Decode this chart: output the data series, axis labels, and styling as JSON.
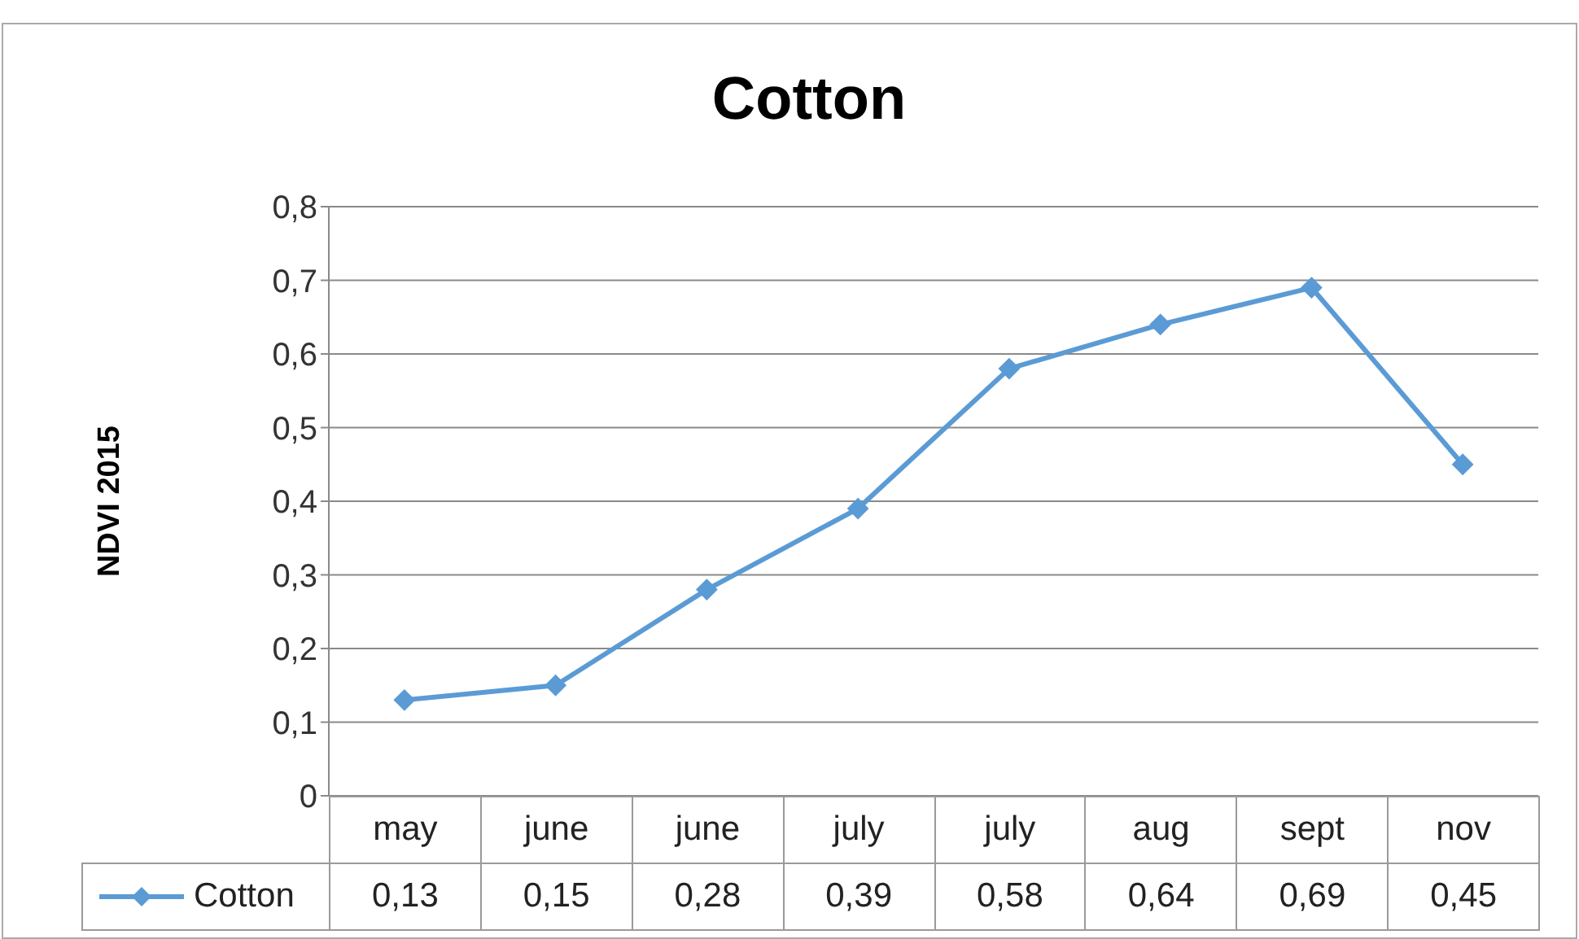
{
  "chart_data": {
    "type": "line",
    "title": "Cotton",
    "ylabel": "NDVI 2015",
    "categories": [
      "may",
      "june",
      "june",
      "july",
      "july",
      "aug",
      "sept",
      "nov"
    ],
    "series": [
      {
        "name": "Cotton",
        "color": "#5b9bd5",
        "values": [
          0.13,
          0.15,
          0.28,
          0.39,
          0.58,
          0.64,
          0.69,
          0.45
        ],
        "value_labels": [
          "0,13",
          "0,15",
          "0,28",
          "0,39",
          "0,58",
          "0,64",
          "0,69",
          "0,45"
        ]
      }
    ],
    "ylim": [
      0,
      0.8
    ],
    "yticks": [
      {
        "value": 0,
        "label": "0"
      },
      {
        "value": 0.1,
        "label": "0,1"
      },
      {
        "value": 0.2,
        "label": "0,2"
      },
      {
        "value": 0.3,
        "label": "0,3"
      },
      {
        "value": 0.4,
        "label": "0,4"
      },
      {
        "value": 0.5,
        "label": "0,5"
      },
      {
        "value": 0.6,
        "label": "0,6"
      },
      {
        "value": 0.7,
        "label": "0,7"
      },
      {
        "value": 0.8,
        "label": "0,8"
      }
    ],
    "grid": "y",
    "legend": "bottom",
    "marker": "diamond",
    "line_style": "solid"
  }
}
